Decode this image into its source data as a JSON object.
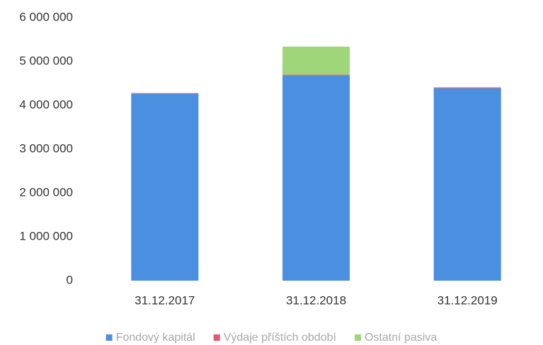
{
  "chart_data": {
    "type": "stacked_bar",
    "categories": [
      "31.12.2017",
      "31.12.2018",
      "31.12.2019"
    ],
    "series": [
      {
        "name": "Fondový kapitál",
        "color": "#4a8fe0",
        "values": [
          4270000,
          4680000,
          4390000
        ]
      },
      {
        "name": "Výdaje příštích období",
        "color": "#e2596b",
        "values": [
          10000,
          20000,
          20000
        ]
      },
      {
        "name": "Ostatní pasiva",
        "color": "#9fd67a",
        "values": [
          0,
          640000,
          0
        ]
      }
    ],
    "ylim": [
      0,
      6000000
    ],
    "yticks": [
      {
        "value": 0,
        "label": "0"
      },
      {
        "value": 1000000,
        "label": "1 000 000"
      },
      {
        "value": 2000000,
        "label": "2 000 000"
      },
      {
        "value": 3000000,
        "label": "3 000 000"
      },
      {
        "value": 4000000,
        "label": "4 000 000"
      },
      {
        "value": 5000000,
        "label": "5 000 000"
      },
      {
        "value": 6000000,
        "label": "6 000 000"
      }
    ],
    "grid": false,
    "legend": "bottom"
  }
}
